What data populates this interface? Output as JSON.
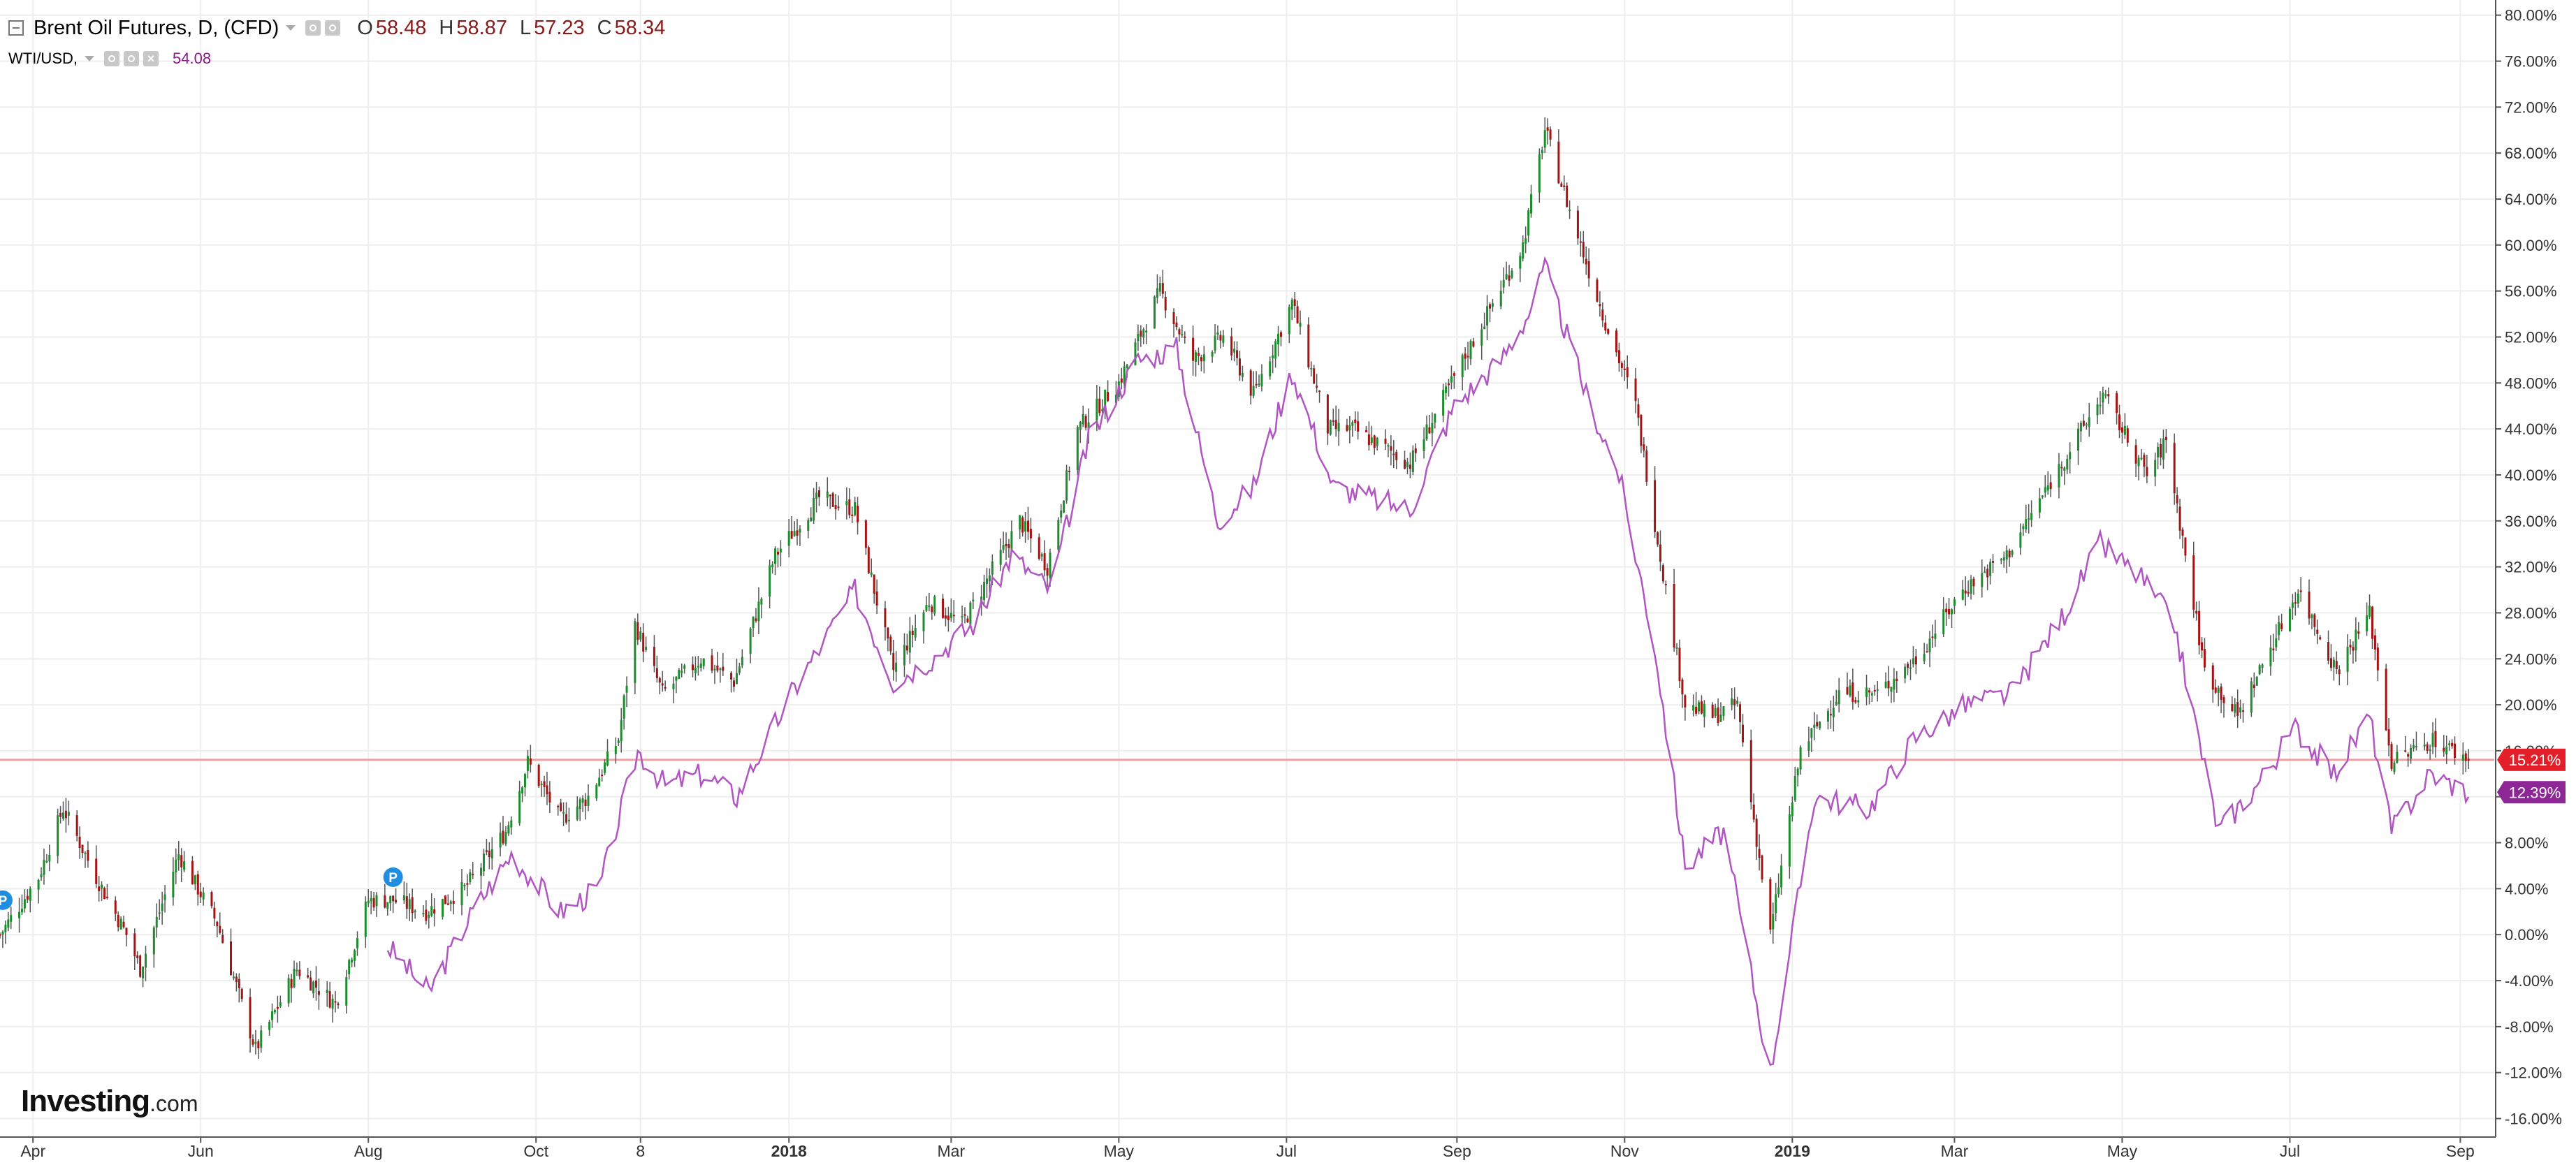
{
  "legend": {
    "main_title": "Brent Oil Futures, D, (CFD)",
    "o_key": "O",
    "o_val": "58.48",
    "h_key": "H",
    "h_val": "58.87",
    "l_key": "L",
    "l_val": "57.23",
    "c_key": "C",
    "c_val": "58.34",
    "compare_title": "WTI/USD,",
    "compare_val": "54.08"
  },
  "logo": {
    "brand": "Investing",
    "suffix": ".com"
  },
  "colors": {
    "up": "#1e8c2e",
    "down": "#a31515",
    "wick": "#555555",
    "wti_line": "#b055c2",
    "baseline": "#f0a0a0",
    "brent_badge": "#e3202a",
    "wti_badge": "#8e2796",
    "grid": "#eeeeee"
  },
  "chart_data": {
    "type": "candlestick+line",
    "y_unit": "percent change",
    "ylim": [
      -18,
      82
    ],
    "y_ticks": [
      -16,
      -12,
      -8,
      -4,
      0,
      4,
      8,
      12,
      16,
      20,
      24,
      28,
      32,
      36,
      40,
      44,
      48,
      52,
      56,
      60,
      64,
      68,
      72,
      76,
      80
    ],
    "y_tick_labels": [
      "-16.00%",
      "-12.00%",
      "-8.00%",
      "-4.00%",
      "0.00%",
      "4.00%",
      "8.00%",
      "12.00%",
      "16.00%",
      "20.00%",
      "24.00%",
      "28.00%",
      "32.00%",
      "36.00%",
      "40.00%",
      "44.00%",
      "48.00%",
      "52.00%",
      "56.00%",
      "60.00%",
      "64.00%",
      "68.00%",
      "72.00%",
      "76.00%",
      "80.00%"
    ],
    "x_start": "2017-03-20",
    "x_end": "2019-09-07",
    "x_ticks": [
      {
        "date": "2017-04-01",
        "label": "Apr",
        "bold": false
      },
      {
        "date": "2017-06-01",
        "label": "Jun",
        "bold": false
      },
      {
        "date": "2017-08-01",
        "label": "Aug",
        "bold": false
      },
      {
        "date": "2017-10-01",
        "label": "Oct",
        "bold": false
      },
      {
        "date": "2017-11-08",
        "label": "8",
        "bold": false
      },
      {
        "date": "2018-01-01",
        "label": "2018",
        "bold": true
      },
      {
        "date": "2018-03-01",
        "label": "Mar",
        "bold": false
      },
      {
        "date": "2018-05-01",
        "label": "May",
        "bold": false
      },
      {
        "date": "2018-07-01",
        "label": "Jul",
        "bold": false
      },
      {
        "date": "2018-09-01",
        "label": "Sep",
        "bold": false
      },
      {
        "date": "2018-11-01",
        "label": "Nov",
        "bold": false
      },
      {
        "date": "2019-01-01",
        "label": "2019",
        "bold": true
      },
      {
        "date": "2019-03-01",
        "label": "Mar",
        "bold": false
      },
      {
        "date": "2019-05-01",
        "label": "May",
        "bold": false
      },
      {
        "date": "2019-07-01",
        "label": "Jul",
        "bold": false
      },
      {
        "date": "2019-09-01",
        "label": "Sep",
        "bold": false
      }
    ],
    "brent_close_pct": [
      [
        "2017-03-20",
        0
      ],
      [
        "2017-04-03",
        5
      ],
      [
        "2017-04-12",
        11
      ],
      [
        "2017-04-24",
        5
      ],
      [
        "2017-05-05",
        0
      ],
      [
        "2017-05-10",
        -3
      ],
      [
        "2017-05-24",
        7
      ],
      [
        "2017-06-07",
        1
      ],
      [
        "2017-06-21",
        -10
      ],
      [
        "2017-07-06",
        -3
      ],
      [
        "2017-07-20",
        -6
      ],
      [
        "2017-08-01",
        3
      ],
      [
        "2017-08-10",
        3
      ],
      [
        "2017-08-22",
        2
      ],
      [
        "2017-09-05",
        4
      ],
      [
        "2017-09-20",
        9
      ],
      [
        "2017-09-28",
        15
      ],
      [
        "2017-10-10",
        10
      ],
      [
        "2017-10-20",
        12
      ],
      [
        "2017-10-31",
        17
      ],
      [
        "2017-11-06",
        27
      ],
      [
        "2017-11-16",
        21
      ],
      [
        "2017-11-30",
        24
      ],
      [
        "2017-12-12",
        22
      ],
      [
        "2017-12-27",
        33
      ],
      [
        "2018-01-12",
        38
      ],
      [
        "2018-01-25",
        37
      ],
      [
        "2018-02-08",
        23
      ],
      [
        "2018-02-21",
        29
      ],
      [
        "2018-03-05",
        27
      ],
      [
        "2018-03-26",
        36
      ],
      [
        "2018-04-05",
        32
      ],
      [
        "2018-04-16",
        44
      ],
      [
        "2018-05-01",
        48
      ],
      [
        "2018-05-16",
        56
      ],
      [
        "2018-05-28",
        50
      ],
      [
        "2018-06-08",
        52
      ],
      [
        "2018-06-19",
        47
      ],
      [
        "2018-07-03",
        55
      ],
      [
        "2018-07-16",
        44
      ],
      [
        "2018-07-25",
        44
      ],
      [
        "2018-08-15",
        41
      ],
      [
        "2018-08-30",
        48
      ],
      [
        "2018-09-12",
        54
      ],
      [
        "2018-09-25",
        60
      ],
      [
        "2018-10-03",
        70
      ],
      [
        "2018-10-12",
        63
      ],
      [
        "2018-10-24",
        54
      ],
      [
        "2018-11-05",
        46
      ],
      [
        "2018-11-16",
        30
      ],
      [
        "2018-11-23",
        20
      ],
      [
        "2018-12-03",
        19
      ],
      [
        "2018-12-12",
        20
      ],
      [
        "2018-12-24",
        0
      ],
      [
        "2019-01-04",
        16
      ],
      [
        "2019-01-18",
        21
      ],
      [
        "2019-02-01",
        21
      ],
      [
        "2019-02-15",
        24
      ],
      [
        "2019-03-04",
        30
      ],
      [
        "2019-03-20",
        33
      ],
      [
        "2019-04-04",
        39
      ],
      [
        "2019-04-24",
        47
      ],
      [
        "2019-05-10",
        40
      ],
      [
        "2019-05-17",
        43
      ],
      [
        "2019-05-31",
        23
      ],
      [
        "2019-06-12",
        19
      ],
      [
        "2019-06-24",
        25
      ],
      [
        "2019-07-04",
        30
      ],
      [
        "2019-07-18",
        23
      ],
      [
        "2019-07-30",
        28
      ],
      [
        "2019-08-07",
        15
      ],
      [
        "2019-08-22",
        17
      ],
      [
        "2019-09-04",
        15.21
      ]
    ],
    "wti_pct": [
      [
        "2017-08-08",
        -1
      ],
      [
        "2017-08-23",
        -5
      ],
      [
        "2017-09-08",
        2
      ],
      [
        "2017-09-22",
        7
      ],
      [
        "2017-10-10",
        2
      ],
      [
        "2017-10-24",
        4
      ],
      [
        "2017-11-07",
        16
      ],
      [
        "2017-11-17",
        13
      ],
      [
        "2017-12-01",
        14
      ],
      [
        "2017-12-13",
        12
      ],
      [
        "2018-01-02",
        21
      ],
      [
        "2018-01-25",
        30
      ],
      [
        "2018-02-08",
        22
      ],
      [
        "2018-02-22",
        24
      ],
      [
        "2018-03-09",
        27
      ],
      [
        "2018-03-23",
        33
      ],
      [
        "2018-04-06",
        30
      ],
      [
        "2018-04-20",
        43
      ],
      [
        "2018-05-08",
        50
      ],
      [
        "2018-05-22",
        51
      ],
      [
        "2018-06-06",
        36
      ],
      [
        "2018-06-19",
        39
      ],
      [
        "2018-07-03",
        49
      ],
      [
        "2018-07-18",
        39
      ],
      [
        "2018-08-15",
        37
      ],
      [
        "2018-08-31",
        46
      ],
      [
        "2018-09-17",
        50
      ],
      [
        "2018-09-27",
        54
      ],
      [
        "2018-10-03",
        58
      ],
      [
        "2018-10-18",
        47
      ],
      [
        "2018-10-30",
        40
      ],
      [
        "2018-11-12",
        25
      ],
      [
        "2018-11-23",
        6
      ],
      [
        "2018-12-07",
        9
      ],
      [
        "2018-12-24",
        -12
      ],
      [
        "2019-01-09",
        12
      ],
      [
        "2019-01-29",
        11
      ],
      [
        "2019-02-14",
        17
      ],
      [
        "2019-03-05",
        20
      ],
      [
        "2019-03-22",
        21
      ],
      [
        "2019-04-10",
        28
      ],
      [
        "2019-04-23",
        34
      ],
      [
        "2019-05-08",
        31
      ],
      [
        "2019-05-20",
        27
      ],
      [
        "2019-06-05",
        9
      ],
      [
        "2019-06-19",
        13
      ],
      [
        "2019-07-03",
        18
      ],
      [
        "2019-07-17",
        14
      ],
      [
        "2019-07-30",
        19
      ],
      [
        "2019-08-07",
        9
      ],
      [
        "2019-08-21",
        14
      ],
      [
        "2019-09-04",
        12.39
      ]
    ],
    "baseline_pct": 15.21,
    "last_value_labels": [
      {
        "series": "Brent Oil Futures",
        "value": 15.21,
        "label": "15.21%"
      },
      {
        "series": "WTI/USD",
        "value": 12.39,
        "label": "12.39%"
      }
    ],
    "markers": [
      {
        "date": "2017-03-21",
        "value": 3,
        "label": "P"
      },
      {
        "date": "2017-08-10",
        "value": 5,
        "label": "P"
      }
    ],
    "grid": true,
    "y_axis_side": "right"
  }
}
